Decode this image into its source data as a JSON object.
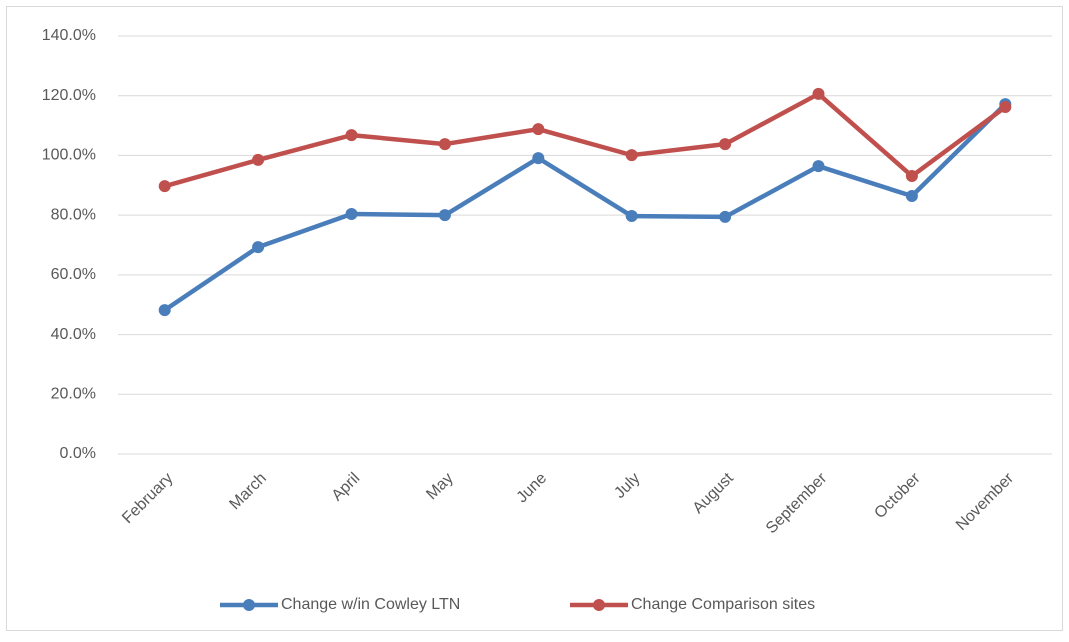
{
  "chart_data": {
    "type": "line",
    "categories": [
      "February",
      "March",
      "April",
      "May",
      "June",
      "July",
      "August",
      "September",
      "October",
      "November"
    ],
    "series": [
      {
        "name": "Change w/in Cowley LTN",
        "color": "#4a7ebb",
        "values": [
          48.2,
          69.3,
          80.4,
          80.0,
          99.1,
          79.7,
          79.4,
          96.4,
          86.4,
          117.2
        ]
      },
      {
        "name": "Change Comparison sites",
        "color": "#c0504d",
        "values": [
          89.7,
          98.5,
          106.8,
          103.8,
          108.8,
          100.1,
          103.8,
          120.6,
          93.1,
          116.2
        ]
      }
    ],
    "ylim": [
      0,
      140
    ],
    "yticks": [
      {
        "value": 0,
        "label": "0.0%"
      },
      {
        "value": 20,
        "label": "20.0%"
      },
      {
        "value": 40,
        "label": "40.0%"
      },
      {
        "value": 60,
        "label": "60.0%"
      },
      {
        "value": 80,
        "label": "80.0%"
      },
      {
        "value": 100,
        "label": "100.0%"
      },
      {
        "value": 120,
        "label": "120.0%"
      },
      {
        "value": 140,
        "label": "140.0%"
      }
    ],
    "grid": true,
    "legend": "bottom"
  }
}
